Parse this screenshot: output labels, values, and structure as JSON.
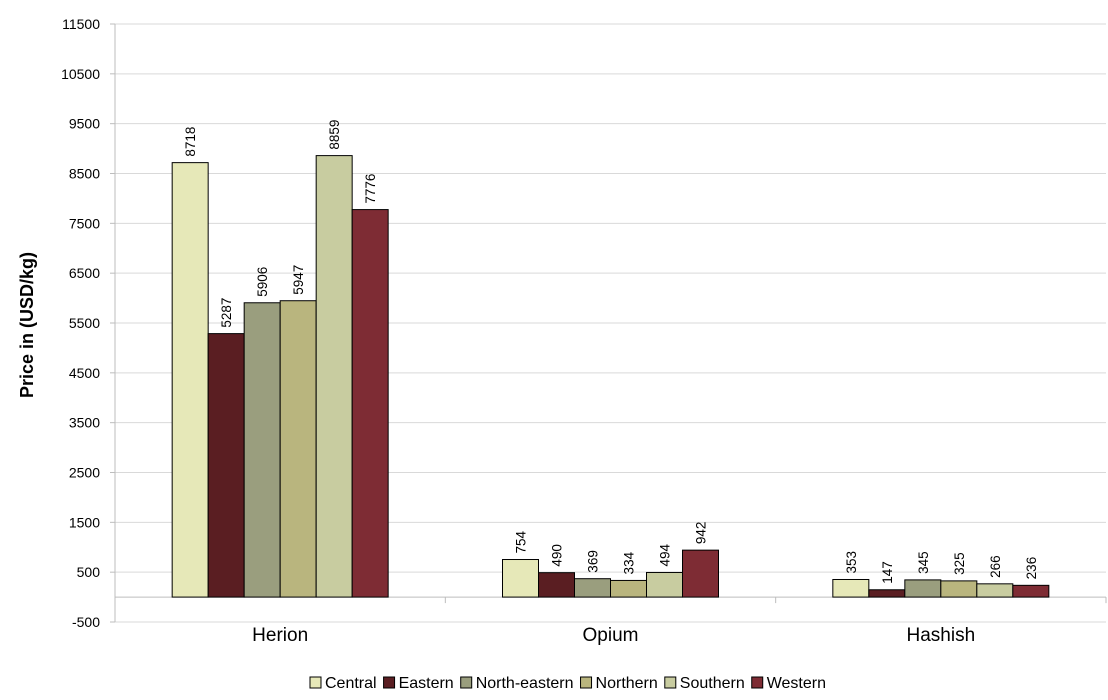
{
  "chart_data": {
    "type": "bar",
    "title": "",
    "xlabel": "",
    "ylabel": "Price in (USD/kg)",
    "categories": [
      "Herion",
      "Opium",
      "Hashish"
    ],
    "series": [
      {
        "name": "Central",
        "color": "#e6e8b8",
        "values": [
          8718,
          754,
          353
        ]
      },
      {
        "name": "Eastern",
        "color": "#5a1e22",
        "values": [
          5287,
          490,
          147
        ]
      },
      {
        "name": "North-eastern",
        "color": "#9a9e7e",
        "values": [
          5906,
          369,
          345
        ]
      },
      {
        "name": "Northern",
        "color": "#b9b57e",
        "values": [
          5947,
          334,
          325
        ]
      },
      {
        "name": "Southern",
        "color": "#c8cca0",
        "values": [
          8859,
          494,
          266
        ]
      },
      {
        "name": "Western",
        "color": "#7e2c34",
        "values": [
          7776,
          942,
          236
        ]
      }
    ],
    "ylim": [
      -500,
      11500
    ],
    "yticks": [
      -500,
      500,
      1500,
      2500,
      3500,
      4500,
      5500,
      6500,
      7500,
      8500,
      9500,
      10500,
      11500
    ],
    "grid": true,
    "legend_position": "bottom"
  }
}
